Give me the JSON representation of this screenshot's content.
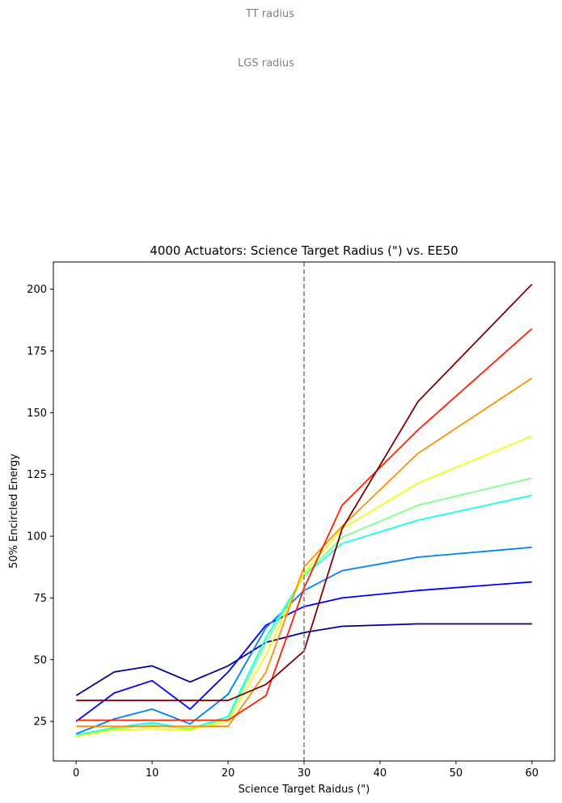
{
  "chart_data": {
    "type": "line",
    "title": "4000 Actuators: Science Target Radius (\") vs. EE50",
    "xlabel": "Science Target Raidus (\")",
    "ylabel": "50% Encircled Energy",
    "xlim": [
      -3,
      63
    ],
    "ylim": [
      9,
      211
    ],
    "xticks": [
      0,
      10,
      20,
      30,
      40,
      50,
      60
    ],
    "yticks": [
      25,
      50,
      75,
      100,
      125,
      150,
      175,
      200
    ],
    "grid": false,
    "legend": "none",
    "x": [
      0,
      5,
      10,
      15,
      20,
      25,
      30,
      35,
      45,
      60
    ],
    "series": [
      {
        "color": "#00008f",
        "values": [
          35.5,
          45,
          47.5,
          41,
          47.5,
          57,
          61,
          63.5,
          64.5,
          64.5
        ]
      },
      {
        "color": "#0000ff",
        "values": [
          25,
          36.5,
          41.5,
          30,
          45,
          64,
          71.5,
          75,
          78,
          81.5
        ]
      },
      {
        "color": "#0080ff",
        "values": [
          20,
          26,
          30,
          24,
          36,
          63,
          78,
          86,
          91.5,
          95.5
        ]
      },
      {
        "color": "#0fffef",
        "values": [
          19.5,
          22.5,
          24.5,
          22,
          27,
          59,
          84,
          97,
          106.5,
          116.5
        ]
      },
      {
        "color": "#80ff80",
        "values": [
          19,
          22,
          23.5,
          22,
          26,
          57,
          84,
          99.5,
          112.5,
          123.5
        ]
      },
      {
        "color": "#efff0f",
        "values": [
          19,
          21.5,
          22,
          21.5,
          25,
          52,
          85,
          103,
          121.5,
          140.5
        ]
      },
      {
        "color": "#ff8f00",
        "values": [
          23,
          23,
          23,
          23,
          23,
          45,
          87.5,
          104,
          133.5,
          164
        ]
      },
      {
        "color": "#ff1f00",
        "values": [
          25.5,
          25.5,
          25.5,
          25.5,
          25.5,
          35.5,
          79,
          112.5,
          143,
          184
        ]
      },
      {
        "color": "#7f0000",
        "values": [
          33.5,
          33.5,
          33.5,
          33.5,
          33.5,
          40,
          53.5,
          103,
          154.5,
          202
        ]
      }
    ],
    "annotations": [
      {
        "text": "TT radius",
        "x": 30
      },
      {
        "text": "LGS radius",
        "x": 30
      }
    ],
    "vline": {
      "x": 30,
      "color": "#808080",
      "style": "dashed"
    }
  }
}
